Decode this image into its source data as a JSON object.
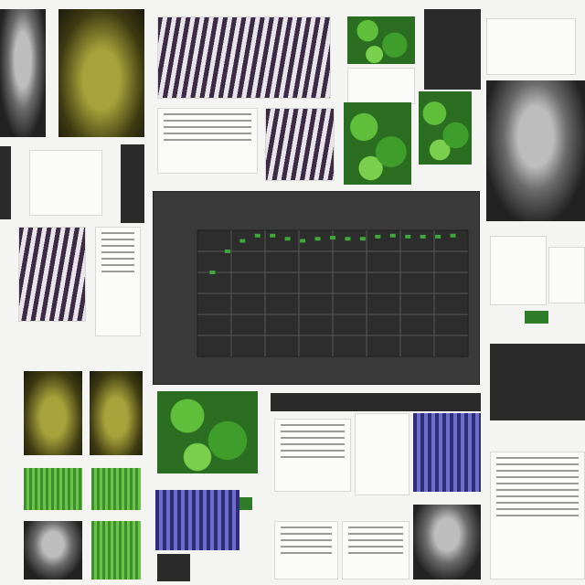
{
  "center_chart": {
    "title": "",
    "chart_data": {
      "type": "scatter",
      "x": [
        1,
        2,
        3,
        4,
        5,
        6,
        7,
        8,
        9,
        10,
        11,
        12,
        13,
        14,
        15,
        16,
        17
      ],
      "y": [
        0.8,
        1.0,
        1.1,
        1.15,
        1.15,
        1.12,
        1.1,
        1.12,
        1.13,
        1.12,
        1.12,
        1.14,
        1.15,
        1.14,
        1.14,
        1.14,
        1.15
      ],
      "xlim": [
        0,
        18
      ],
      "ylim": [
        0,
        1.2
      ],
      "grid": true,
      "marker_color": "#3fa83a"
    }
  },
  "colors": {
    "panel_bg": "#3a3a3a",
    "plot_bg": "#2d2d2d",
    "grid": "#565656",
    "accent_green": "#3fa83a"
  }
}
